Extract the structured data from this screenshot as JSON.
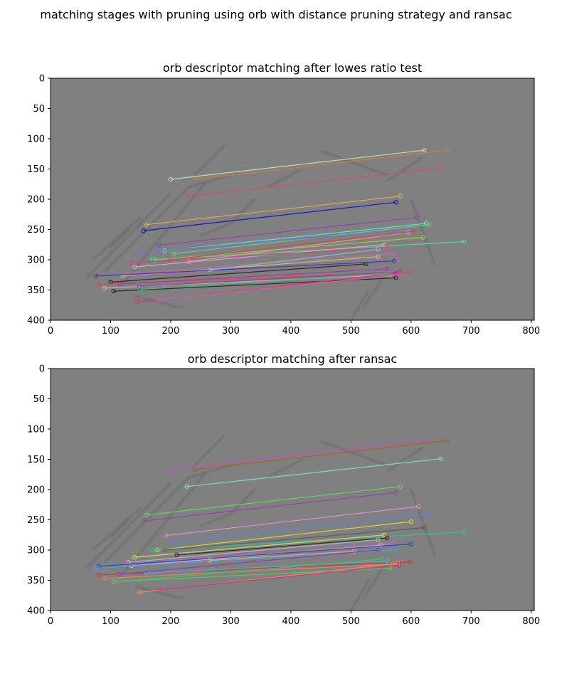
{
  "figure": {
    "suptitle": "matching stages with pruning using orb with distance pruning strategy and ransac"
  },
  "colors": {
    "background": "#808080",
    "smear": "#5a5a5a"
  },
  "chart_data": [
    {
      "type": "scatter",
      "title": "orb descriptor matching after lowes ratio test",
      "xlim": [
        0,
        805
      ],
      "ylim": [
        400,
        0
      ],
      "xticks": [
        0,
        100,
        200,
        300,
        400,
        500,
        600,
        700,
        800
      ],
      "yticks": [
        0,
        50,
        100,
        150,
        200,
        250,
        300,
        350,
        400
      ],
      "grid": false,
      "matches": [
        [
          200,
          167,
          622,
          119,
          "#a8e0a8"
        ],
        [
          240,
          167,
          660,
          119,
          "#d07848"
        ],
        [
          227,
          195,
          650,
          149,
          "#c85858"
        ],
        [
          160,
          242,
          582,
          195,
          "#d0a858"
        ],
        [
          155,
          252,
          575,
          205,
          "#2020b0"
        ],
        [
          180,
          276,
          610,
          230,
          "#9048a8"
        ],
        [
          190,
          285,
          625,
          240,
          "#70d0d0"
        ],
        [
          205,
          290,
          630,
          242,
          "#60d070"
        ],
        [
          150,
          288,
          598,
          250,
          "#7070e8"
        ],
        [
          175,
          300,
          620,
          263,
          "#a0c040"
        ],
        [
          170,
          300,
          688,
          270,
          "#50d890"
        ],
        [
          140,
          312,
          555,
          275,
          "#d0a0d0"
        ],
        [
          135,
          305,
          560,
          280,
          "#d04878"
        ],
        [
          125,
          323,
          570,
          290,
          "#b070b0"
        ],
        [
          120,
          327,
          545,
          295,
          "#c0c060"
        ],
        [
          140,
          326,
          580,
          300,
          "#c060c0"
        ],
        [
          100,
          337,
          525,
          307,
          "#303030"
        ],
        [
          76,
          327,
          572,
          302,
          "#4040a0"
        ],
        [
          80,
          341,
          598,
          320,
          "#d05050"
        ],
        [
          90,
          347,
          565,
          325,
          "#d8a0a0"
        ],
        [
          105,
          352,
          575,
          330,
          "#303030"
        ],
        [
          115,
          340,
          560,
          315,
          "#a040a0"
        ],
        [
          148,
          344,
          580,
          320,
          "#9040b0"
        ],
        [
          150,
          349,
          560,
          323,
          "#40c080"
        ],
        [
          145,
          370,
          578,
          322,
          "#d03878"
        ],
        [
          180,
          366,
          580,
          325,
          "#d060a0"
        ],
        [
          265,
          317,
          545,
          283,
          "#90b0d0"
        ],
        [
          230,
          303,
          595,
          255,
          "#e090a0"
        ],
        [
          200,
          300,
          605,
          253,
          "#c05050"
        ]
      ]
    },
    {
      "type": "scatter",
      "title": "orb descriptor matching after ransac",
      "xlim": [
        0,
        805
      ],
      "ylim": [
        400,
        0
      ],
      "xticks": [
        0,
        100,
        200,
        300,
        400,
        500,
        600,
        700,
        800
      ],
      "yticks": [
        0,
        50,
        100,
        150,
        200,
        250,
        300,
        350,
        400
      ],
      "grid": false,
      "matches": [
        [
          200,
          167,
          622,
          119,
          "#c050c0"
        ],
        [
          240,
          167,
          660,
          119,
          "#a06820"
        ],
        [
          227,
          195,
          650,
          149,
          "#80d0c0"
        ],
        [
          160,
          242,
          582,
          195,
          "#60d060"
        ],
        [
          155,
          252,
          575,
          205,
          "#9048a8"
        ],
        [
          192,
          276,
          612,
          228,
          "#d090d0"
        ],
        [
          205,
          287,
          628,
          240,
          "#6080e0"
        ],
        [
          178,
          300,
          600,
          253,
          "#d0d040"
        ],
        [
          170,
          300,
          688,
          270,
          "#30c090"
        ],
        [
          190,
          300,
          622,
          263,
          "#606060"
        ],
        [
          140,
          312,
          555,
          275,
          "#d0d060"
        ],
        [
          210,
          308,
          560,
          280,
          "#303030"
        ],
        [
          125,
          323,
          570,
          290,
          "#d060c0"
        ],
        [
          135,
          326,
          550,
          292,
          "#d0a0d0"
        ],
        [
          130,
          320,
          545,
          283,
          "#b0b0b0"
        ],
        [
          80,
          327,
          600,
          290,
          "#2050c0"
        ],
        [
          76,
          330,
          575,
          300,
          "#40a0e0"
        ],
        [
          265,
          317,
          505,
          302,
          "#d0b060"
        ],
        [
          80,
          341,
          598,
          320,
          "#c04040"
        ],
        [
          90,
          347,
          570,
          323,
          "#e08060"
        ],
        [
          105,
          352,
          565,
          330,
          "#60c060"
        ],
        [
          160,
          338,
          560,
          318,
          "#60a0d0"
        ],
        [
          150,
          349,
          550,
          315,
          "#40c060"
        ],
        [
          148,
          370,
          578,
          322,
          "#e09060"
        ],
        [
          180,
          366,
          580,
          325,
          "#d03878"
        ],
        [
          115,
          340,
          545,
          300,
          "#9040b0"
        ]
      ]
    }
  ]
}
